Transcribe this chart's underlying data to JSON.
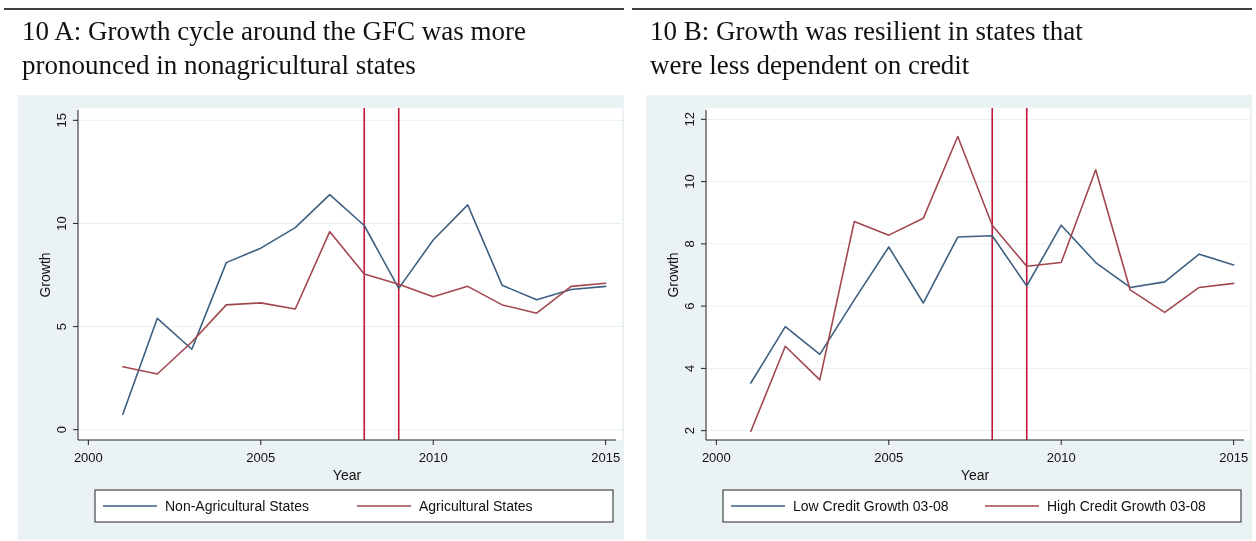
{
  "chart_data": [
    {
      "type": "line",
      "title": "10 A: Growth cycle around the GFC was more pronounced in nonagricultural states",
      "xlabel": "Year",
      "ylabel": "Growth",
      "x": [
        2001,
        2002,
        2003,
        2004,
        2005,
        2006,
        2007,
        2008,
        2009,
        2010,
        2011,
        2012,
        2013,
        2014,
        2015
      ],
      "series": [
        {
          "name": "Non-Agricultural States",
          "color": "#3e5f80",
          "values": [
            0.75,
            5.4,
            3.9,
            8.1,
            8.8,
            9.8,
            11.4,
            9.9,
            6.85,
            9.2,
            10.9,
            7.0,
            6.3,
            6.8,
            6.95
          ]
        },
        {
          "name": "Agricultural States",
          "color": "#a1474f",
          "values": [
            3.05,
            2.7,
            4.25,
            6.05,
            6.15,
            5.85,
            9.6,
            7.55,
            7.05,
            6.45,
            6.95,
            6.05,
            5.65,
            6.95,
            7.1
          ]
        }
      ],
      "xlim": [
        1999.7,
        2015.3
      ],
      "ylim": [
        -0.5,
        15.5
      ],
      "xticks": [
        2000,
        2005,
        2010,
        2015
      ],
      "yticks": [
        0,
        5,
        10,
        15
      ],
      "ref_lines": [
        {
          "axis": "x",
          "value": 2008,
          "color": "#c3153a"
        },
        {
          "axis": "x",
          "value": 2009,
          "color": "#c3153a"
        }
      ],
      "grid": "y",
      "legend": "bottom",
      "marker": "none",
      "line_style": "solid"
    },
    {
      "type": "line",
      "title": "10 B: Growth was resilient in states that were less dependent on credit",
      "xlabel": "Year",
      "ylabel": "Growth",
      "x": [
        2001,
        2002,
        2003,
        2004,
        2005,
        2006,
        2007,
        2008,
        2009,
        2010,
        2011,
        2012,
        2013,
        2014,
        2015
      ],
      "series": [
        {
          "name": "Low Credit Growth 03-08",
          "color": "#3e5f80",
          "values": [
            3.53,
            5.34,
            4.45,
            6.2,
            7.9,
            6.1,
            8.22,
            8.26,
            6.65,
            8.6,
            7.4,
            6.6,
            6.78,
            7.67,
            7.32
          ]
        },
        {
          "name": "High Credit Growth 03-08",
          "color": "#a1474f",
          "values": [
            1.98,
            4.71,
            3.63,
            8.72,
            8.28,
            8.82,
            11.45,
            8.6,
            7.28,
            7.4,
            10.38,
            6.52,
            5.8,
            6.6,
            6.73
          ]
        }
      ],
      "xlim": [
        1999.7,
        2015.3
      ],
      "ylim": [
        1.7,
        12.3
      ],
      "xticks": [
        2000,
        2005,
        2010,
        2015
      ],
      "yticks": [
        2,
        4,
        6,
        8,
        10,
        12
      ],
      "ref_lines": [
        {
          "axis": "x",
          "value": 2008,
          "color": "#c3153a"
        },
        {
          "axis": "x",
          "value": 2009,
          "color": "#c3153a"
        }
      ],
      "grid": "y",
      "legend": "bottom",
      "marker": "none",
      "line_style": "solid"
    }
  ]
}
